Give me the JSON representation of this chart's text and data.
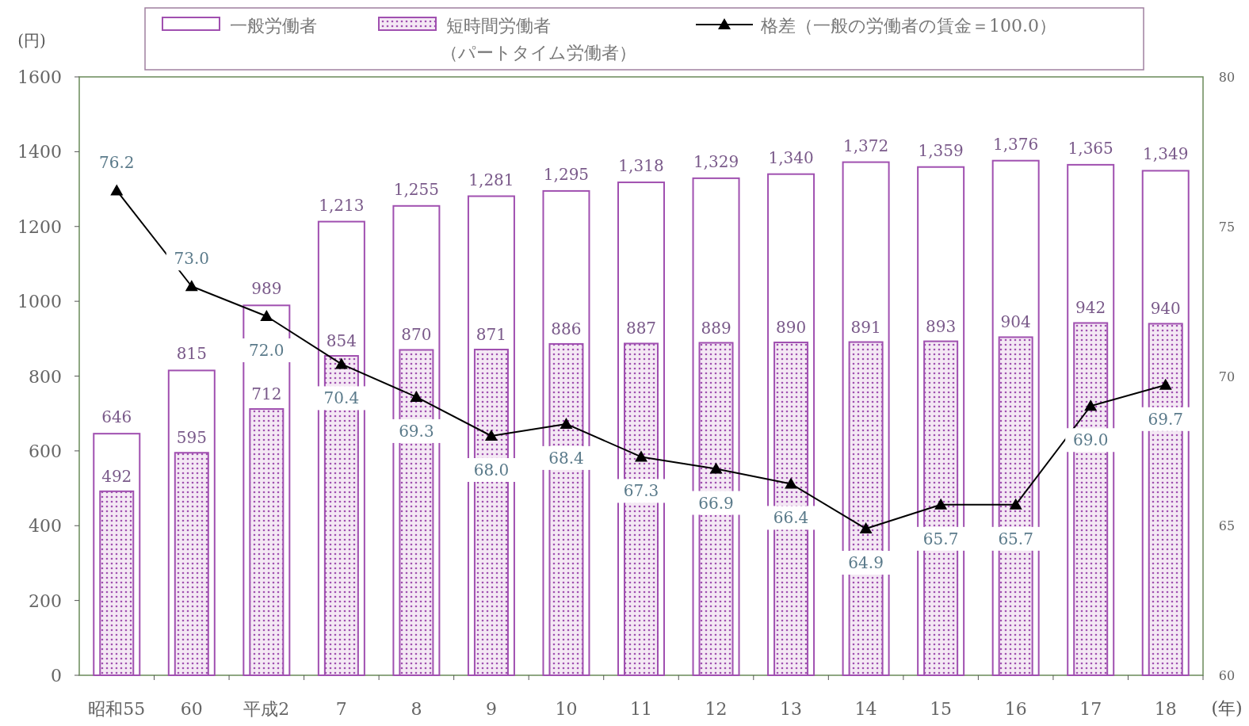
{
  "chart_data": {
    "type": "bar",
    "categories": [
      "昭和55",
      "60",
      "平成2",
      "7",
      "8",
      "9",
      "10",
      "11",
      "12",
      "13",
      "14",
      "15",
      "16",
      "17",
      "18"
    ],
    "ylabel": "(円)",
    "xlabel": "(年)",
    "ylim": [
      0,
      1600
    ],
    "yticks": [
      0,
      200,
      400,
      600,
      800,
      1000,
      1200,
      1400,
      1600
    ],
    "y2lim": [
      60,
      80
    ],
    "y2ticks": [
      60,
      65,
      70,
      75,
      80
    ],
    "legend": "top",
    "series": [
      {
        "name": "一般労働者",
        "color": "#a050b0",
        "values": [
          646,
          815,
          989,
          1213,
          1255,
          1281,
          1295,
          1318,
          1329,
          1340,
          1372,
          1359,
          1376,
          1365,
          1349
        ],
        "value_labels": [
          "646",
          "815",
          "989",
          "1,213",
          "1,255",
          "1,281",
          "1,295",
          "1,318",
          "1,329",
          "1,340",
          "1,372",
          "1,359",
          "1,376",
          "1,365",
          "1,349"
        ]
      },
      {
        "name": "短時間労働者（パートタイム労働者）",
        "color": "#a050b0",
        "values": [
          492,
          595,
          712,
          854,
          870,
          871,
          886,
          887,
          889,
          890,
          891,
          893,
          904,
          942,
          940
        ],
        "value_labels": [
          "492",
          "595",
          "712",
          "854",
          "870",
          "871",
          "886",
          "887",
          "889",
          "890",
          "891",
          "893",
          "904",
          "942",
          "940"
        ]
      },
      {
        "name": "格差（一般の労働者の賃金＝100.0）",
        "type": "line",
        "axis": "y2",
        "color": "#000000",
        "marker": "triangle",
        "values": [
          76.2,
          73.0,
          72.0,
          70.4,
          69.3,
          68.0,
          68.4,
          67.3,
          66.9,
          66.4,
          64.9,
          65.7,
          65.7,
          69.0,
          69.7
        ],
        "value_labels": [
          "76.2",
          "73.0",
          "72.0",
          "70.4",
          "69.3",
          "68.0",
          "68.4",
          "67.3",
          "66.9",
          "66.4",
          "64.9",
          "65.7",
          "65.7",
          "69.0",
          "69.7"
        ]
      }
    ]
  }
}
